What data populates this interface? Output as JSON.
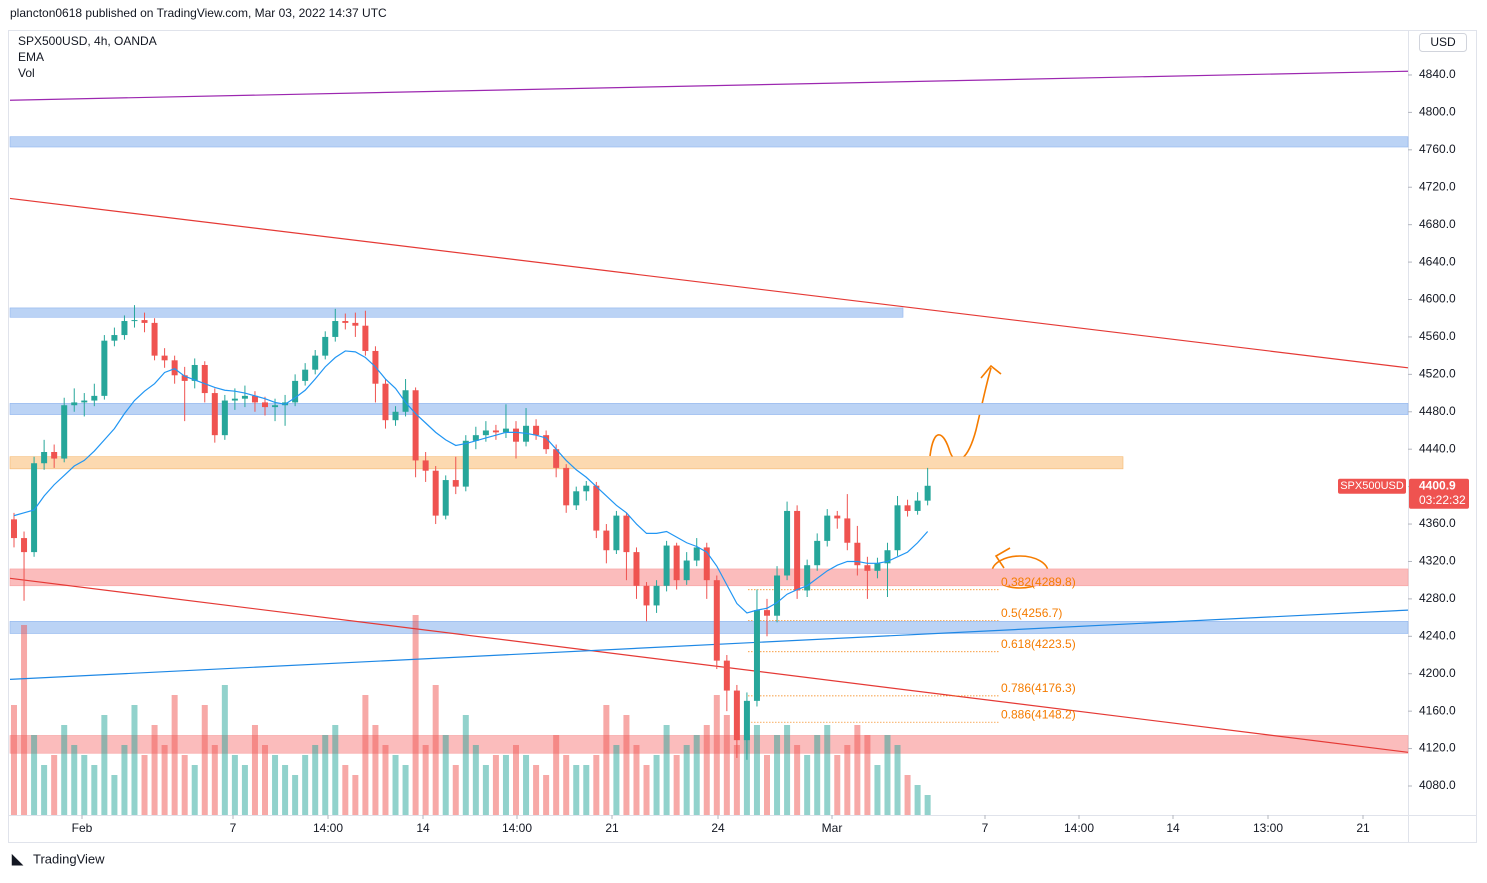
{
  "chart_data": {
    "type": "candlestick",
    "publisher": "plancton0618 published on TradingView.com, Mar 03, 2022 14:37 UTC",
    "title": "SPX500USD, 4h, OANDA",
    "indicators": [
      "EMA",
      "Vol"
    ],
    "currency": "USD",
    "symbol": "SPX500USD",
    "countdown": "03:22:32",
    "footer": "TradingView",
    "time_labels": [
      "Feb",
      "7",
      "14:00",
      "14",
      "14:00",
      "21",
      "24",
      "Mar",
      "7",
      "14:00",
      "14",
      "13:00",
      "21"
    ],
    "ylim": [
      4049,
      4887
    ],
    "yticks": [
      {
        "value": 4080,
        "label": "4080.0"
      },
      {
        "value": 4120,
        "label": "4120.0"
      },
      {
        "value": 4160,
        "label": "4160.0"
      },
      {
        "value": 4200,
        "label": "4200.0"
      },
      {
        "value": 4240,
        "label": "4240.0"
      },
      {
        "value": 4280,
        "label": "4280.0"
      },
      {
        "value": 4320,
        "label": "4320.0"
      },
      {
        "value": 4360,
        "label": "4360.0"
      },
      {
        "value": 4400,
        "label": "4400.0"
      },
      {
        "value": 4440,
        "label": "4440.0"
      },
      {
        "value": 4480,
        "label": "4480.0"
      },
      {
        "value": 4520,
        "label": "4520.0"
      },
      {
        "value": 4560,
        "label": "4560.0"
      },
      {
        "value": 4600,
        "label": "4600.0"
      },
      {
        "value": 4640,
        "label": "4640.0"
      },
      {
        "value": 4680,
        "label": "4680.0"
      },
      {
        "value": 4720,
        "label": "4720.0"
      },
      {
        "value": 4760,
        "label": "4760.0"
      },
      {
        "value": 4800,
        "label": "4800.0"
      },
      {
        "value": 4840,
        "label": "4840.0"
      }
    ],
    "vlim": [
      0,
      100
    ],
    "up_color": "#26a69a",
    "down_color": "#ef5350",
    "ema_color": "#2196f3",
    "open": [
      4365,
      4345,
      4330,
      4425,
      4437,
      4430,
      4487,
      4490,
      4492,
      4497,
      4556,
      4562,
      4577,
      4578,
      4575,
      4540,
      4535,
      4519,
      4513,
      4530,
      4500,
      4455,
      4492,
      4494,
      4497,
      4490,
      4485,
      4487,
      4490,
      4513,
      4525,
      4540,
      4560,
      4577,
      4575,
      4572,
      4545,
      4510,
      4471,
      4480,
      4503,
      4428,
      4417,
      4369,
      4407,
      4400,
      4449,
      4455,
      4460,
      4458,
      4462,
      4448,
      4465,
      4455,
      4440,
      4420,
      4380,
      4395,
      4401,
      4353,
      4332,
      4369,
      4330,
      4294,
      4273,
      4294,
      4337,
      4300,
      4321,
      4335,
      4300,
      4214,
      4182,
      4129,
      4171,
      4268,
      4262,
      4305,
      4374,
      4289,
      4316,
      4342,
      4369,
      4366,
      4340,
      4316,
      4310,
      4318,
      4332,
      4380,
      4374,
      4385
    ],
    "high": [
      4372,
      4352,
      4432,
      4450,
      4445,
      4495,
      4505,
      4500,
      4510,
      4562,
      4570,
      4583,
      4594,
      4586,
      4580,
      4548,
      4540,
      4528,
      4537,
      4534,
      4505,
      4498,
      4505,
      4508,
      4502,
      4496,
      4494,
      4498,
      4520,
      4532,
      4546,
      4566,
      4590,
      4585,
      4586,
      4588,
      4550,
      4515,
      4486,
      4515,
      4506,
      4437,
      4422,
      4412,
      4432,
      4455,
      4464,
      4470,
      4466,
      4488,
      4470,
      4484,
      4472,
      4460,
      4445,
      4424,
      4400,
      4406,
      4405,
      4360,
      4374,
      4372,
      4335,
      4298,
      4300,
      4342,
      4340,
      4330,
      4345,
      4340,
      4305,
      4220,
      4188,
      4180,
      4290,
      4280,
      4315,
      4384,
      4380,
      4322,
      4350,
      4376,
      4374,
      4392,
      4358,
      4325,
      4324,
      4340,
      4390,
      4386,
      4394,
      4420
    ],
    "low": [
      4335,
      4278,
      4325,
      4418,
      4420,
      4426,
      4480,
      4475,
      4486,
      4493,
      4550,
      4557,
      4570,
      4565,
      4535,
      4527,
      4510,
      4470,
      4505,
      4490,
      4447,
      4450,
      4482,
      4485,
      4480,
      4476,
      4470,
      4465,
      4486,
      4508,
      4520,
      4536,
      4555,
      4568,
      4560,
      4540,
      4490,
      4462,
      4465,
      4475,
      4410,
      4405,
      4360,
      4365,
      4392,
      4395,
      4440,
      4448,
      4450,
      4452,
      4430,
      4443,
      4450,
      4435,
      4410,
      4372,
      4375,
      4385,
      4345,
      4318,
      4328,
      4300,
      4280,
      4256,
      4265,
      4288,
      4290,
      4295,
      4315,
      4280,
      4205,
      4160,
      4110,
      4108,
      4165,
      4240,
      4255,
      4300,
      4280,
      4282,
      4310,
      4336,
      4355,
      4332,
      4305,
      4280,
      4302,
      4282,
      4326,
      4368,
      4370,
      4380
    ],
    "close": [
      4345,
      4330,
      4425,
      4437,
      4430,
      4487,
      4490,
      4492,
      4497,
      4556,
      4562,
      4577,
      4578,
      4575,
      4540,
      4535,
      4519,
      4513,
      4530,
      4500,
      4455,
      4492,
      4494,
      4497,
      4490,
      4485,
      4487,
      4490,
      4513,
      4525,
      4540,
      4560,
      4577,
      4575,
      4572,
      4545,
      4510,
      4471,
      4480,
      4503,
      4428,
      4417,
      4369,
      4407,
      4400,
      4449,
      4455,
      4460,
      4458,
      4462,
      4448,
      4465,
      4455,
      4440,
      4420,
      4380,
      4395,
      4401,
      4353,
      4332,
      4369,
      4330,
      4294,
      4273,
      4294,
      4337,
      4300,
      4321,
      4335,
      4300,
      4214,
      4182,
      4129,
      4171,
      4268,
      4262,
      4305,
      4374,
      4289,
      4316,
      4342,
      4369,
      4366,
      4340,
      4316,
      4310,
      4318,
      4332,
      4380,
      4374,
      4385,
      4400.9
    ],
    "volume": [
      55,
      95,
      40,
      25,
      30,
      45,
      35,
      30,
      25,
      50,
      20,
      35,
      55,
      30,
      45,
      35,
      60,
      30,
      25,
      55,
      35,
      65,
      30,
      25,
      45,
      35,
      30,
      25,
      20,
      30,
      35,
      40,
      45,
      25,
      20,
      60,
      45,
      35,
      30,
      25,
      100,
      35,
      65,
      40,
      25,
      50,
      35,
      25,
      30,
      30,
      35,
      30,
      25,
      20,
      40,
      30,
      25,
      25,
      30,
      55,
      35,
      50,
      35,
      25,
      30,
      45,
      30,
      35,
      40,
      45,
      60,
      50,
      35,
      40,
      45,
      30,
      40,
      45,
      35,
      30,
      40,
      45,
      30,
      35,
      45,
      40,
      25,
      40,
      35,
      20,
      15,
      10
    ],
    "ema": [
      4369,
      4372,
      4375,
      4390,
      4402,
      4412,
      4422,
      4428,
      4438,
      4450,
      4462,
      4478,
      4492,
      4502,
      4510,
      4522,
      4526,
      4518,
      4514,
      4510,
      4506,
      4503,
      4502,
      4500,
      4497,
      4494,
      4490,
      4488,
      4495,
      4503,
      4515,
      4528,
      4538,
      4545,
      4544,
      4538,
      4528,
      4515,
      4505,
      4490,
      4478,
      4468,
      4458,
      4450,
      4444,
      4446,
      4449,
      4452,
      4455,
      4458,
      4458,
      4457,
      4455,
      4452,
      4440,
      4428,
      4418,
      4410,
      4400,
      4390,
      4380,
      4372,
      4360,
      4350,
      4350,
      4352,
      4346,
      4340,
      4336,
      4330,
      4315,
      4295,
      4275,
      4265,
      4268,
      4270,
      4276,
      4285,
      4290,
      4294,
      4302,
      4310,
      4316,
      4320,
      4320,
      4318,
      4318,
      4320,
      4325,
      4330,
      4340,
      4352
    ],
    "zones": [
      {
        "from": 4763,
        "to": 4774,
        "color": "#bbd3f5"
      },
      {
        "from": 4581,
        "to": 4591,
        "color": "#bbd3f5"
      },
      {
        "from": 4477,
        "to": 4489,
        "color": "#bbd3f5"
      },
      {
        "from": 4419,
        "to": 4432,
        "color": "#fcd9b0"
      },
      {
        "from": 4294,
        "to": 4312,
        "color": "#fbbcbc"
      },
      {
        "from": 4243,
        "to": 4256,
        "color": "#bbd3f5"
      },
      {
        "from": 4115,
        "to": 4134,
        "color": "#fbbcbc"
      }
    ],
    "trendlines": [
      {
        "from": 4813,
        "to": 4844,
        "color": "#9c27b0"
      },
      {
        "from": 4708,
        "to": 4527,
        "color": "#e53935"
      },
      {
        "from": 4302,
        "to": 4116,
        "color": "#e53935"
      },
      {
        "from": 4194,
        "to": 4268,
        "color": "#1e88e5"
      }
    ],
    "fib": [
      {
        "value": 4289.8,
        "label": "0.382(4289.8)"
      },
      {
        "value": 4256.7,
        "label": "0.5(4256.7)"
      },
      {
        "value": 4223.5,
        "label": "0.618(4223.5)"
      },
      {
        "value": 4176.3,
        "label": "0.786(4176.3)"
      },
      {
        "value": 4148.2,
        "label": "0.886(4148.2)"
      }
    ]
  }
}
